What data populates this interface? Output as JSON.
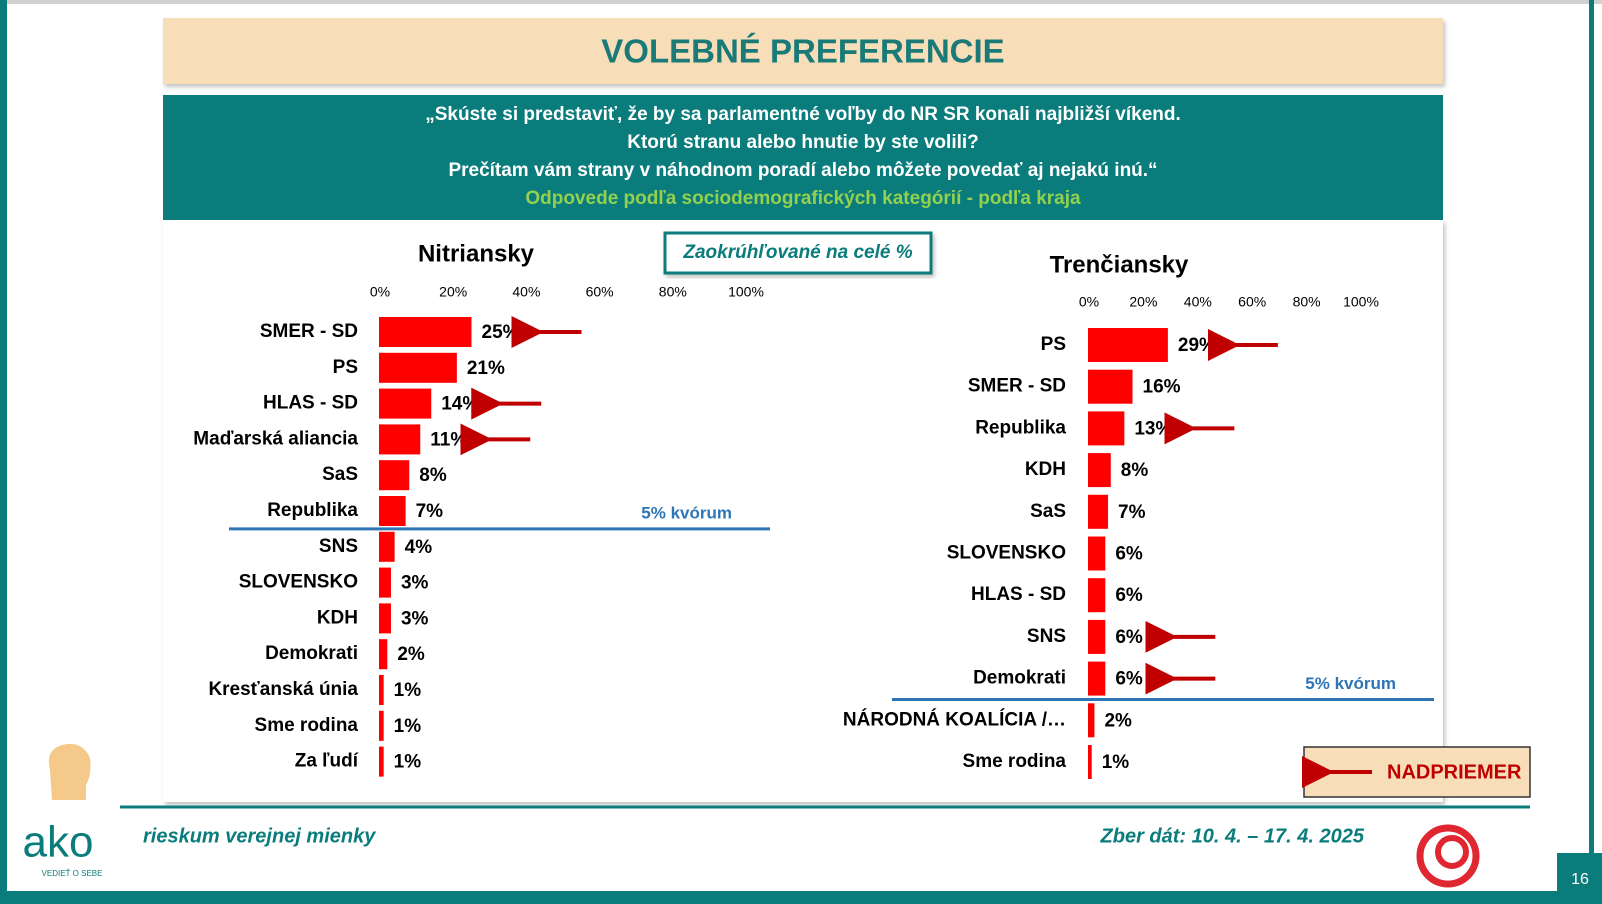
{
  "header": {
    "title": "VOLEBNÉ PREFERENCIE"
  },
  "question": {
    "lines": [
      "„Skúste si predstaviť, že by sa parlamentné voľby do NR SR konali najbližší víkend.",
      "Ktorú stranu alebo hnutie by ste volili?",
      "Prečítam vám strany v náhodnom poradí alebo môžete povedať aj nejakú inú.“"
    ],
    "subtitle": "Odpovede podľa sociodemografických kategórií - podľa kraja"
  },
  "note": "Zaokrúhľované na celé %",
  "chart_data": [
    {
      "type": "bar",
      "orientation": "horizontal",
      "title": "Nitriansky",
      "categories": [
        "SMER - SD",
        "PS",
        "HLAS - SD",
        "Maďarská aliancia",
        "SaS",
        "Republika",
        "SNS",
        "SLOVENSKO",
        "KDH",
        "Demokrati",
        "Kresťanská únia",
        "Sme rodina",
        "Za ľudí"
      ],
      "values": [
        25,
        21,
        14,
        11,
        8,
        7,
        4,
        3,
        3,
        2,
        1,
        1,
        1
      ],
      "value_labels": [
        "25%",
        "21%",
        "14%",
        "11%",
        "8%",
        "7%",
        "4%",
        "3%",
        "3%",
        "2%",
        "1%",
        "1%",
        "1%"
      ],
      "above_average": [
        true,
        false,
        true,
        true,
        false,
        false,
        false,
        false,
        false,
        false,
        false,
        false,
        false
      ],
      "color": "#ff0000",
      "xlim": [
        0,
        100
      ],
      "xticks": [
        {
          "value": 0,
          "label": "0%"
        },
        {
          "value": 20,
          "label": "20%"
        },
        {
          "value": 40,
          "label": "40%"
        },
        {
          "value": 60,
          "label": "60%"
        },
        {
          "value": 80,
          "label": "80%"
        },
        {
          "value": 100,
          "label": "100%"
        }
      ],
      "quorum": {
        "value": 5,
        "label": "5% kvórum"
      }
    },
    {
      "type": "bar",
      "orientation": "horizontal",
      "title": "Trenčiansky",
      "categories": [
        "PS",
        "SMER - SD",
        "Republika",
        "KDH",
        "SaS",
        "SLOVENSKO",
        "HLAS - SD",
        "SNS",
        "Demokrati",
        "NÁRODNÁ KOALÍCIA /…",
        "Sme rodina"
      ],
      "values": [
        29,
        16,
        13,
        8,
        7,
        6,
        6,
        6,
        6,
        2,
        1
      ],
      "value_labels": [
        "29%",
        "16%",
        "13%",
        "8%",
        "7%",
        "6%",
        "6%",
        "6%",
        "6%",
        "2%",
        "1%"
      ],
      "above_average": [
        true,
        false,
        true,
        false,
        false,
        false,
        false,
        true,
        true,
        false,
        false
      ],
      "color": "#ff0000",
      "xlim": [
        0,
        100
      ],
      "xticks": [
        {
          "value": 0,
          "label": "0%"
        },
        {
          "value": 20,
          "label": "20%"
        },
        {
          "value": 40,
          "label": "40%"
        },
        {
          "value": 60,
          "label": "60%"
        },
        {
          "value": 80,
          "label": "80%"
        },
        {
          "value": 100,
          "label": "100%"
        }
      ],
      "quorum": {
        "value": 5,
        "label": "5% kvórum"
      }
    }
  ],
  "legend": {
    "label": "NADPRIEMER"
  },
  "footer": {
    "logo": "ako",
    "logo_sub": "VEDIEŤ O SEBE",
    "tagline": "rieskum verejnej mienky",
    "date": "Zber dát: 10. 4. – 17. 4. 2025",
    "page": "16"
  }
}
